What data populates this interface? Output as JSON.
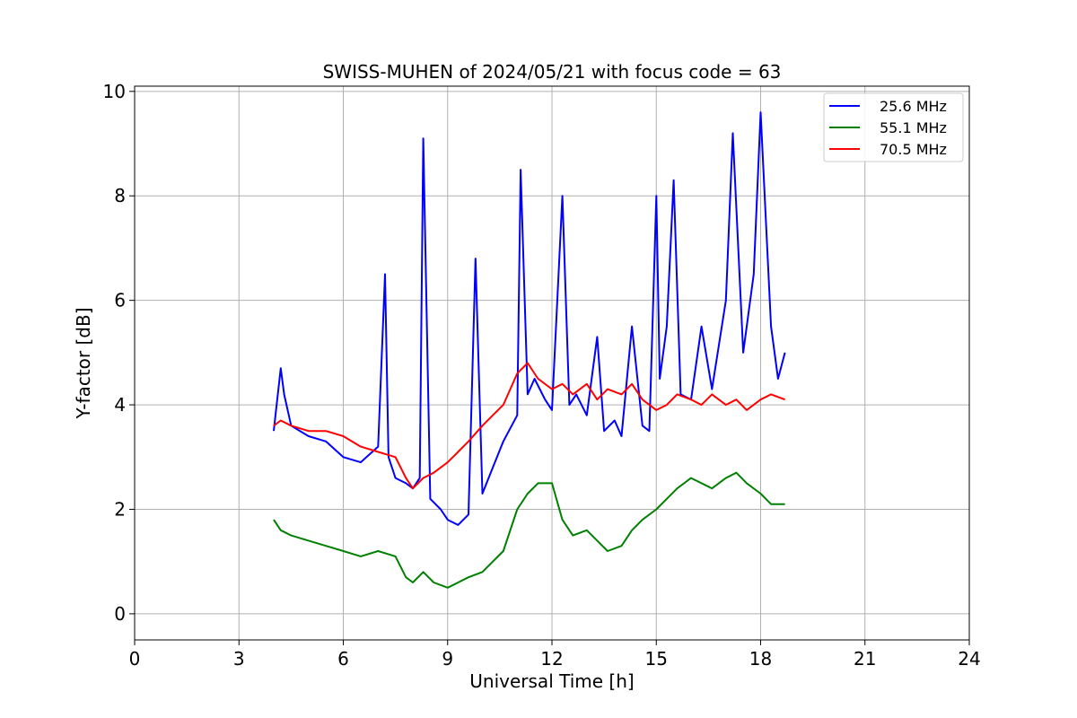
{
  "chart_data": {
    "type": "line",
    "title": "SWISS-MUHEN of 2024/05/21 with focus code = 63",
    "xlabel": "Universal Time [h]",
    "ylabel": "Y-factor [dB]",
    "xlim": [
      0,
      24
    ],
    "ylim": [
      -0.5,
      10.1
    ],
    "xticks": [
      "0",
      "3",
      "6",
      "9",
      "12",
      "15",
      "18",
      "21",
      "24"
    ],
    "yticks": [
      "0",
      "2",
      "4",
      "6",
      "8",
      "10"
    ],
    "grid": true,
    "legend_position": "top-right",
    "series": [
      {
        "name": "25.6 MHz",
        "color": "#0000ff",
        "x": [
          4.0,
          4.2,
          4.3,
          4.5,
          5.0,
          5.5,
          6.0,
          6.5,
          7.0,
          7.2,
          7.3,
          7.5,
          7.8,
          8.0,
          8.2,
          8.3,
          8.5,
          8.8,
          9.0,
          9.3,
          9.6,
          9.8,
          10.0,
          10.3,
          10.6,
          11.0,
          11.1,
          11.3,
          11.5,
          11.8,
          12.0,
          12.3,
          12.5,
          12.7,
          13.0,
          13.3,
          13.5,
          13.8,
          14.0,
          14.3,
          14.6,
          14.8,
          15.0,
          15.1,
          15.3,
          15.5,
          15.7,
          16.0,
          16.3,
          16.6,
          17.0,
          17.2,
          17.5,
          17.8,
          18.0,
          18.3,
          18.5,
          18.7
        ],
        "y": [
          3.5,
          4.7,
          4.2,
          3.6,
          3.4,
          3.3,
          3.0,
          2.9,
          3.2,
          6.5,
          3.0,
          2.6,
          2.5,
          2.4,
          2.6,
          9.1,
          2.2,
          2.0,
          1.8,
          1.7,
          1.9,
          6.8,
          2.3,
          2.8,
          3.3,
          3.8,
          8.5,
          4.2,
          4.5,
          4.1,
          3.9,
          8.0,
          4.0,
          4.2,
          3.8,
          5.3,
          3.5,
          3.7,
          3.4,
          5.5,
          3.6,
          3.5,
          8.0,
          4.5,
          5.5,
          8.3,
          4.2,
          4.1,
          5.5,
          4.3,
          6.0,
          9.2,
          5.0,
          6.5,
          9.6,
          5.5,
          4.5,
          5.0
        ]
      },
      {
        "name": "55.1 MHz",
        "color": "#008000",
        "x": [
          4.0,
          4.2,
          4.5,
          5.0,
          5.5,
          6.0,
          6.5,
          7.0,
          7.5,
          7.8,
          8.0,
          8.3,
          8.6,
          9.0,
          9.3,
          9.6,
          10.0,
          10.3,
          10.6,
          11.0,
          11.3,
          11.6,
          12.0,
          12.3,
          12.6,
          13.0,
          13.3,
          13.6,
          14.0,
          14.3,
          14.6,
          15.0,
          15.3,
          15.6,
          16.0,
          16.3,
          16.6,
          17.0,
          17.3,
          17.6,
          18.0,
          18.3,
          18.7
        ],
        "y": [
          1.8,
          1.6,
          1.5,
          1.4,
          1.3,
          1.2,
          1.1,
          1.2,
          1.1,
          0.7,
          0.6,
          0.8,
          0.6,
          0.5,
          0.6,
          0.7,
          0.8,
          1.0,
          1.2,
          2.0,
          2.3,
          2.5,
          2.5,
          1.8,
          1.5,
          1.6,
          1.4,
          1.2,
          1.3,
          1.6,
          1.8,
          2.0,
          2.2,
          2.4,
          2.6,
          2.5,
          2.4,
          2.6,
          2.7,
          2.5,
          2.3,
          2.1,
          2.1
        ]
      },
      {
        "name": "70.5 MHz",
        "color": "#ff0000",
        "x": [
          4.0,
          4.2,
          4.5,
          5.0,
          5.5,
          6.0,
          6.5,
          7.0,
          7.5,
          7.8,
          8.0,
          8.3,
          8.6,
          9.0,
          9.3,
          9.6,
          10.0,
          10.3,
          10.6,
          11.0,
          11.3,
          11.6,
          12.0,
          12.3,
          12.6,
          13.0,
          13.3,
          13.6,
          14.0,
          14.3,
          14.6,
          15.0,
          15.3,
          15.6,
          16.0,
          16.3,
          16.6,
          17.0,
          17.3,
          17.6,
          18.0,
          18.3,
          18.7
        ],
        "y": [
          3.6,
          3.7,
          3.6,
          3.5,
          3.5,
          3.4,
          3.2,
          3.1,
          3.0,
          2.6,
          2.4,
          2.6,
          2.7,
          2.9,
          3.1,
          3.3,
          3.6,
          3.8,
          4.0,
          4.6,
          4.8,
          4.5,
          4.3,
          4.4,
          4.2,
          4.4,
          4.1,
          4.3,
          4.2,
          4.4,
          4.1,
          3.9,
          4.0,
          4.2,
          4.1,
          4.0,
          4.2,
          4.0,
          4.1,
          3.9,
          4.1,
          4.2,
          4.1
        ]
      }
    ]
  }
}
